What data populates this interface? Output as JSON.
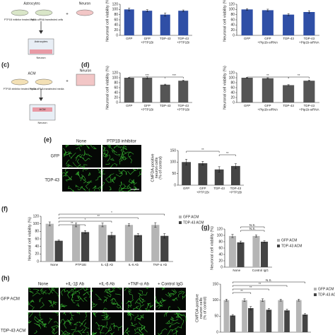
{
  "panel_labels": {
    "c": "(c)",
    "d": "(d)",
    "e": "(e)",
    "f": "(f)",
    "g": "(g)",
    "h": "(h)"
  },
  "diagram_a": {
    "astrocytes": "Astrocytes",
    "neuron": "Neuron",
    "left_dish": "PTP1B inhibitor treated cells",
    "right_dish": "Ptp1b-siRNA transfected cells",
    "insert_top": "Astrocytes",
    "insert_bottom": "Neuron"
  },
  "diagram_c": {
    "acm": "ACM",
    "neuron": "Neuron",
    "left_dish": "PTP1B inhibitor treated media",
    "right_dish": "Ptp1b-siRNA transfected media",
    "insert_top": "ACM",
    "insert_bottom": "Neuron"
  },
  "images_e": {
    "columns": [
      "None",
      "PTP1B inhibitor"
    ],
    "rows": [
      "GFP",
      "TDP-43"
    ]
  },
  "images_h": {
    "columns": [
      "None",
      "+IL-1β Ab",
      "+IL-6 Ab",
      "+TNF-α Ab",
      "+ Control IgG"
    ],
    "rows": [
      "GFP ACM",
      "TDP-43 ACM"
    ]
  },
  "chart_data": [
    {
      "type": "bar",
      "ylabel": "Neuronal cell viability (%)",
      "categories": [
        "GFP",
        "GFP\n+PTP1Bi",
        "TDP-43",
        "TDP-43\n+PTP1Bi"
      ],
      "values": [
        100,
        95,
        80,
        95
      ],
      "errors": [
        5,
        4,
        6,
        3
      ],
      "color": "#2f4fa6",
      "ylim": [
        0,
        120
      ],
      "yticks": [
        0,
        20,
        40,
        60,
        80,
        100,
        120
      ]
    },
    {
      "type": "bar",
      "ylabel": "Neuronal cell viability (%)",
      "categories": [
        "GFP",
        "GFP\n+Ptp1b-siRNA",
        "TDP-43",
        "TDP-43\n+Ptp1b-siRNA"
      ],
      "values": [
        100,
        97,
        80,
        90
      ],
      "errors": [
        3,
        4,
        4,
        5
      ],
      "color": "#2f4fa6",
      "ylim": [
        0,
        120
      ],
      "yticks": [
        0,
        20,
        40,
        60,
        80,
        100,
        120
      ]
    },
    {
      "type": "bar",
      "ylabel": "Neuronal cell viability (%)",
      "categories": [
        "GFP",
        "GFP\n+PTP1Bi",
        "TDP-43",
        "TDP-43\n+PTP1Bi"
      ],
      "values": [
        100,
        100,
        72,
        88
      ],
      "errors": [
        2,
        4,
        2,
        2
      ],
      "color": "#555555",
      "ylim": [
        0,
        120
      ],
      "yticks": [
        0,
        20,
        40,
        60,
        80,
        100,
        120
      ],
      "annotations": [
        "***",
        "***"
      ]
    },
    {
      "type": "bar",
      "ylabel": "Neuronal cell viability (%)",
      "categories": [
        "GFP",
        "GFP\n+Ptp1b-siRNA",
        "TDP-43",
        "TDP-43\n+Ptp1b-siRNA"
      ],
      "values": [
        100,
        98,
        70,
        88
      ],
      "errors": [
        2,
        2,
        2,
        2
      ],
      "color": "#555555",
      "ylim": [
        0,
        120
      ],
      "yticks": [
        0,
        20,
        40,
        60,
        80,
        100,
        120
      ],
      "annotations": [
        "**",
        "**"
      ]
    },
    {
      "type": "bar",
      "ylabel": "CMFDA-positive\nneuron cells\n(% of control)",
      "categories": [
        "GFP",
        "GFP\n+PTP1Bi",
        "TDP-43",
        "TDP-43\n+PTP1Bi"
      ],
      "values": [
        100,
        95,
        68,
        83
      ],
      "errors": [
        12,
        8,
        12,
        10
      ],
      "color": "#444444",
      "ylim": [
        0,
        150
      ],
      "yticks": [
        0,
        50,
        100,
        150
      ],
      "annotations": [
        "**",
        "**"
      ]
    },
    {
      "type": "bar",
      "ylabel": "Neuronal cell viability (%)",
      "categories": [
        "None",
        "PTP1Bi",
        "IL-1β Ab",
        "IL-6 Ab",
        "TNF-α Ab"
      ],
      "series": [
        {
          "name": "GFP ACM",
          "color": "#b5b5b5",
          "values": [
            100,
            97,
            97,
            97,
            97
          ],
          "errors": [
            5,
            5,
            5,
            3,
            6
          ]
        },
        {
          "name": "TDP-43 ACM",
          "color": "#444444",
          "values": [
            55,
            78,
            70,
            70,
            68
          ],
          "errors": [
            2,
            4,
            7,
            4,
            6
          ]
        }
      ],
      "ylim": [
        0,
        120
      ],
      "yticks": [
        0,
        20,
        40,
        60,
        80,
        100,
        120
      ],
      "annotations": [
        "**",
        "*",
        "**",
        "*"
      ]
    },
    {
      "type": "bar",
      "ylabel": "Neuronal cell viability (%)",
      "categories": [
        "None",
        "Control IgG"
      ],
      "series": [
        {
          "name": "GFP ACM",
          "color": "#b5b5b5",
          "values": [
            98,
            98
          ],
          "errors": [
            5,
            3
          ]
        },
        {
          "name": "TDP-43 ACM",
          "color": "#444444",
          "values": [
            78,
            80
          ],
          "errors": [
            4,
            3
          ]
        }
      ],
      "ylim": [
        0,
        120
      ],
      "yticks": [
        0,
        20,
        40,
        60,
        80,
        100,
        120
      ],
      "annotations": [
        "N.S.",
        "N.S."
      ]
    },
    {
      "type": "bar",
      "ylabel": "CMFDA-positive\nneuron cells\n(% of control)",
      "categories": [
        null,
        null,
        null,
        null,
        null
      ],
      "series": [
        {
          "name": "GFP ACM",
          "color": "#b5b5b5",
          "values": [
            100,
            100,
            100,
            100,
            100
          ],
          "errors": [
            3,
            4,
            4,
            3,
            3
          ]
        },
        {
          "name": "TDP-43 ACM",
          "color": "#444444",
          "values": [
            52,
            75,
            70,
            68,
            55
          ],
          "errors": [
            3,
            5,
            4,
            4,
            3
          ]
        }
      ],
      "ylim": [
        0,
        150
      ],
      "yticks": [
        0,
        50,
        100,
        150
      ],
      "annotations": [
        "**",
        "**",
        "**",
        "N.S."
      ]
    }
  ]
}
